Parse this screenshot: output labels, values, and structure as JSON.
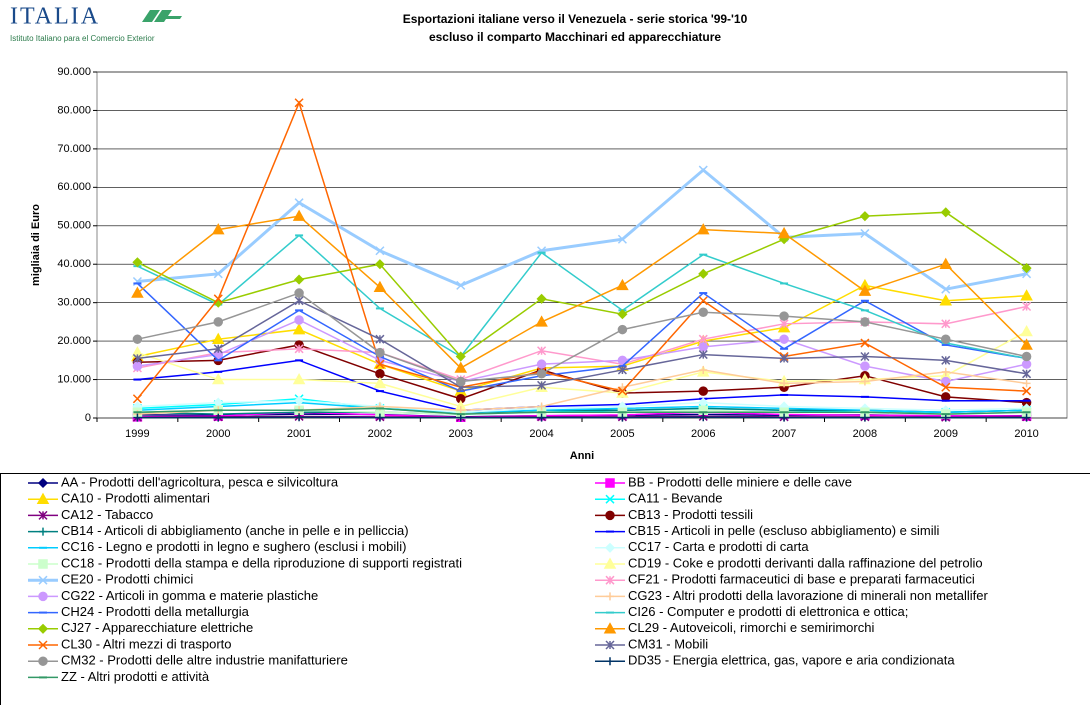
{
  "logo": {
    "name": "ITALIA",
    "subtitle": "Istituto Italiano para el Comercio Exterior"
  },
  "chart_data": {
    "type": "line",
    "title": "Esportazioni italiane verso il Venezuela - serie storica '99-'10",
    "subtitle": "escluso il comparto Macchinari ed apparecchiature",
    "y_label": "migliaia di Euro",
    "x_label": "Anni",
    "categories": [
      "1999",
      "2000",
      "2001",
      "2002",
      "2003",
      "2004",
      "2005",
      "2006",
      "2007",
      "2008",
      "2009",
      "2010"
    ],
    "ylim": [
      0,
      90000
    ],
    "yticks": [
      {
        "value": 0,
        "label": "0"
      },
      {
        "value": 10000,
        "label": "10.000"
      },
      {
        "value": 20000,
        "label": "20.000"
      },
      {
        "value": 30000,
        "label": "30.000"
      },
      {
        "value": 40000,
        "label": "40.000"
      },
      {
        "value": 50000,
        "label": "50.000"
      },
      {
        "value": 60000,
        "label": "60.000"
      },
      {
        "value": 70000,
        "label": "70.000"
      },
      {
        "value": 80000,
        "label": "80.000"
      },
      {
        "value": 90000,
        "label": "90.000"
      }
    ],
    "grid": true,
    "series": [
      {
        "name": "AA  - Prodotti dell'agricoltura, pesca e silvicoltura",
        "color": "#000080",
        "marker": "diamond",
        "values": [
          800,
          700,
          1000,
          900,
          300,
          600,
          700,
          900,
          700,
          800,
          500,
          600
        ]
      },
      {
        "name": "BB   - Prodotti delle miniere e delle cave",
        "color": "#ff00ff",
        "marker": "square",
        "values": [
          300,
          500,
          1500,
          800,
          200,
          600,
          800,
          1500,
          900,
          700,
          600,
          500
        ]
      },
      {
        "name": "CA10 - Prodotti alimentari",
        "color": "#ffdd00",
        "marker": "triangle",
        "values": [
          16000,
          20500,
          23000,
          14000,
          7000,
          13000,
          13500,
          20000,
          23500,
          34500,
          30500,
          31800
        ]
      },
      {
        "name": "CA11 - Bevande",
        "color": "#00ffff",
        "marker": "x",
        "values": [
          2500,
          3500,
          5000,
          2500,
          1000,
          1500,
          2000,
          2500,
          2000,
          1500,
          1500,
          2000
        ]
      },
      {
        "name": "CA12 - Tabacco",
        "color": "#800080",
        "marker": "star",
        "values": [
          200,
          300,
          400,
          300,
          200,
          300,
          300,
          400,
          300,
          300,
          200,
          300
        ]
      },
      {
        "name": "CB13 - Prodotti tessili",
        "color": "#800000",
        "marker": "circle",
        "values": [
          14500,
          15000,
          19000,
          11500,
          5000,
          12500,
          6500,
          7000,
          8000,
          11000,
          5500,
          4000
        ]
      },
      {
        "name": "CB14 - Articoli di abbigliamento (anche in pelle e in pelliccia)",
        "color": "#008080",
        "marker": "plus",
        "values": [
          1500,
          1000,
          1500,
          1500,
          1000,
          2000,
          2000,
          2500,
          2000,
          2000,
          1500,
          2000
        ]
      },
      {
        "name": "CB15 - Articoli in pelle (escluso abbigliamento) e simili",
        "color": "#0000ff",
        "marker": "dash",
        "values": [
          10000,
          12000,
          15000,
          7000,
          2000,
          3000,
          3500,
          5000,
          6000,
          5500,
          4500,
          4500
        ]
      },
      {
        "name": "CC16 - Legno e prodotti in legno e sughero (esclusi i mobili)",
        "color": "#00ccff",
        "marker": "dash",
        "values": [
          2000,
          3000,
          4000,
          2500,
          1500,
          2000,
          2500,
          3000,
          2500,
          2000,
          1500,
          2000
        ]
      },
      {
        "name": "CC17 - Carta e prodotti di carta",
        "color": "#ccffff",
        "marker": "diamond",
        "values": [
          3000,
          4000,
          4500,
          3000,
          1500,
          2500,
          3000,
          4000,
          3000,
          2500,
          2000,
          2500
        ]
      },
      {
        "name": "CC18 - Prodotti della stampa e della riproduzione di supporti registrati",
        "color": "#ccffcc",
        "marker": "square",
        "values": [
          1500,
          2000,
          2000,
          1500,
          1000,
          1500,
          1500,
          2000,
          1500,
          1500,
          1000,
          1500
        ]
      },
      {
        "name": "CD19 - Coke e prodotti derivanti dalla raffinazione del petrolio",
        "color": "#ffff99",
        "marker": "triangle",
        "values": [
          17000,
          10000,
          10000,
          9000,
          3000,
          8000,
          6500,
          12000,
          9500,
          10000,
          11000,
          22500
        ]
      },
      {
        "name": "CE20 - Prodotti chimici",
        "color": "#99ccff",
        "marker": "x",
        "width": 3,
        "values": [
          35500,
          37500,
          56000,
          43500,
          34500,
          43500,
          46500,
          64500,
          47000,
          48000,
          33500,
          37500
        ]
      },
      {
        "name": "CF21 - Prodotti farmaceutici di base e preparati farmaceutici",
        "color": "#ff99cc",
        "marker": "star",
        "values": [
          13000,
          17000,
          18000,
          17000,
          10000,
          17500,
          14000,
          20500,
          24500,
          25000,
          24500,
          29000
        ]
      },
      {
        "name": "CG22 - Articoli in gomma e materie plastiche",
        "color": "#cc99ff",
        "marker": "circle",
        "values": [
          13500,
          16500,
          25500,
          15000,
          9500,
          14000,
          15000,
          18500,
          20500,
          13500,
          9500,
          14000
        ]
      },
      {
        "name": "CG23 - Altri prodotti della lavorazione di minerali non metallifer",
        "color": "#ffcc99",
        "marker": "plus",
        "values": [
          1000,
          2000,
          2000,
          3000,
          2000,
          3000,
          8000,
          12500,
          9000,
          9500,
          12000,
          9000
        ]
      },
      {
        "name": "CH24 - Prodotti della metallurgia",
        "color": "#3366ff",
        "marker": "dash",
        "values": [
          35000,
          15000,
          28000,
          16000,
          7000,
          11000,
          13500,
          32500,
          18000,
          30500,
          19000,
          15500
        ]
      },
      {
        "name": "CI26 - Computer e prodotti di elettronica e ottica;",
        "color": "#33cccc",
        "marker": "dash",
        "values": [
          39500,
          29500,
          47500,
          28500,
          16000,
          43000,
          28000,
          42500,
          35000,
          28000,
          19500,
          15500
        ]
      },
      {
        "name": "CJ27 - Apparecchiature elettriche",
        "color": "#99cc00",
        "marker": "diamond",
        "values": [
          40500,
          30000,
          36000,
          40000,
          16000,
          31000,
          27000,
          37500,
          46500,
          52500,
          53500,
          39000
        ]
      },
      {
        "name": "CL29 - Autoveicoli, rimorchi e semirimorchi",
        "color": "#ff9900",
        "marker": "triangle",
        "values": [
          32500,
          49000,
          52500,
          34000,
          13000,
          25000,
          34500,
          49000,
          48000,
          33000,
          40000,
          19000
        ]
      },
      {
        "name": "CL30 - Altri mezzi di trasporto",
        "color": "#ff6600",
        "marker": "x",
        "values": [
          5000,
          31000,
          82000,
          14000,
          8000,
          12000,
          7000,
          30500,
          16000,
          19500,
          8000,
          7000
        ]
      },
      {
        "name": "CM31 - Mobili",
        "color": "#666699",
        "marker": "star",
        "values": [
          15500,
          18000,
          30500,
          20500,
          8000,
          8500,
          12500,
          16500,
          15500,
          16000,
          15000,
          11500
        ]
      },
      {
        "name": "CM32 - Prodotti delle altre industrie manifatturiere",
        "color": "#969696",
        "marker": "circle",
        "values": [
          20500,
          25000,
          32500,
          17000,
          9500,
          11500,
          23000,
          27500,
          26500,
          25000,
          20500,
          16000
        ]
      },
      {
        "name": "DD35 - Energia elettrica, gas, vapore e aria condizionata",
        "color": "#003366",
        "marker": "plus",
        "values": [
          100,
          100,
          200,
          100,
          100,
          100,
          100,
          200,
          100,
          100,
          100,
          100
        ]
      },
      {
        "name": "ZZ   - Altri prodotti e attività",
        "color": "#339966",
        "marker": "dash",
        "values": [
          1500,
          2000,
          2000,
          2500,
          1000,
          1500,
          1500,
          1500,
          1500,
          1500,
          1000,
          1500
        ]
      }
    ]
  }
}
